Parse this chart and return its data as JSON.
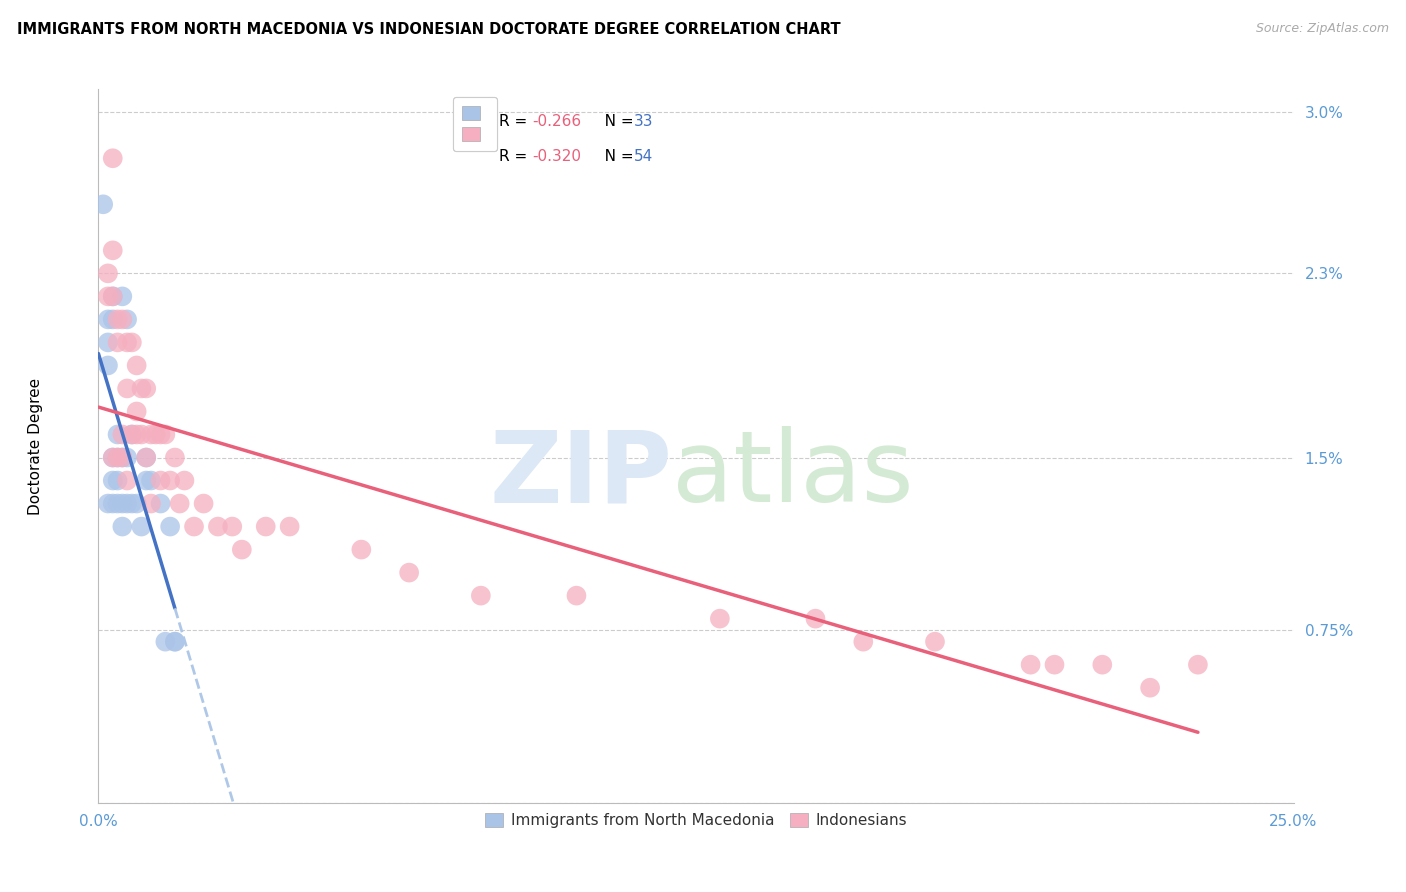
{
  "title": "IMMIGRANTS FROM NORTH MACEDONIA VS INDONESIAN DOCTORATE DEGREE CORRELATION CHART",
  "source": "Source: ZipAtlas.com",
  "ylabel": "Doctorate Degree",
  "xmin": 0.0,
  "xmax": 0.25,
  "ymin": 0.0,
  "ymax": 0.031,
  "color_blue": "#aac4e8",
  "color_pink": "#f5afc0",
  "line_color_blue": "#4472c4",
  "line_color_pink": "#e8607a",
  "line_color_dashed": "#b0c8e8",
  "title_fontsize": 10.5,
  "source_fontsize": 9,
  "axis_label_color": "#5b9bd5",
  "ytick_vals": [
    0.0,
    0.0075,
    0.015,
    0.023,
    0.03
  ],
  "ytick_labels": [
    "",
    "0.75%",
    "1.5%",
    "2.3%",
    "3.0%"
  ],
  "blue_x": [
    0.001,
    0.002,
    0.002,
    0.002,
    0.002,
    0.003,
    0.003,
    0.003,
    0.003,
    0.003,
    0.004,
    0.004,
    0.004,
    0.004,
    0.005,
    0.005,
    0.005,
    0.005,
    0.006,
    0.006,
    0.006,
    0.007,
    0.007,
    0.008,
    0.009,
    0.01,
    0.01,
    0.011,
    0.013,
    0.014,
    0.015,
    0.016,
    0.016
  ],
  "blue_y": [
    0.026,
    0.021,
    0.02,
    0.019,
    0.013,
    0.022,
    0.021,
    0.015,
    0.014,
    0.013,
    0.016,
    0.015,
    0.014,
    0.013,
    0.022,
    0.015,
    0.013,
    0.012,
    0.021,
    0.015,
    0.013,
    0.016,
    0.013,
    0.013,
    0.012,
    0.015,
    0.014,
    0.014,
    0.013,
    0.007,
    0.012,
    0.007,
    0.007
  ],
  "pink_x": [
    0.002,
    0.002,
    0.003,
    0.003,
    0.003,
    0.003,
    0.004,
    0.004,
    0.004,
    0.005,
    0.005,
    0.005,
    0.006,
    0.006,
    0.006,
    0.007,
    0.007,
    0.008,
    0.008,
    0.008,
    0.009,
    0.009,
    0.01,
    0.01,
    0.011,
    0.011,
    0.012,
    0.013,
    0.013,
    0.014,
    0.015,
    0.016,
    0.017,
    0.018,
    0.02,
    0.022,
    0.025,
    0.028,
    0.03,
    0.035,
    0.04,
    0.055,
    0.065,
    0.08,
    0.1,
    0.13,
    0.15,
    0.16,
    0.175,
    0.195,
    0.2,
    0.21,
    0.22,
    0.23
  ],
  "pink_y": [
    0.023,
    0.022,
    0.028,
    0.024,
    0.022,
    0.015,
    0.021,
    0.02,
    0.015,
    0.021,
    0.016,
    0.015,
    0.02,
    0.018,
    0.014,
    0.02,
    0.016,
    0.019,
    0.017,
    0.016,
    0.018,
    0.016,
    0.018,
    0.015,
    0.016,
    0.013,
    0.016,
    0.016,
    0.014,
    0.016,
    0.014,
    0.015,
    0.013,
    0.014,
    0.012,
    0.013,
    0.012,
    0.012,
    0.011,
    0.012,
    0.012,
    0.011,
    0.01,
    0.009,
    0.009,
    0.008,
    0.008,
    0.007,
    0.007,
    0.006,
    0.006,
    0.006,
    0.005,
    0.006
  ],
  "watermark_zip_color": "#dce8f5",
  "watermark_atlas_color": "#d5ead5",
  "legend_r1": "-0.266",
  "legend_n1": "33",
  "legend_r2": "-0.320",
  "legend_n2": "54"
}
